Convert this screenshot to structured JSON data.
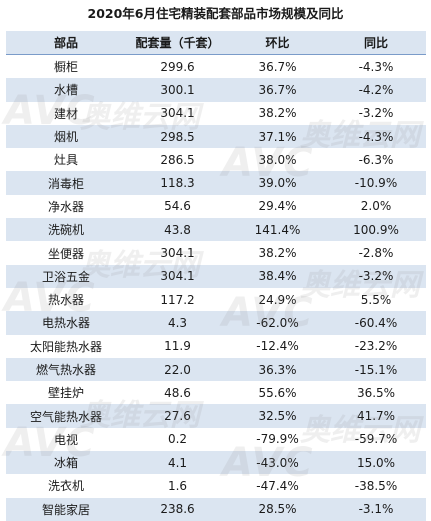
{
  "title": "2020年6月住宅精装配套部品市场规模及同比",
  "headers": [
    "部品",
    "配套量（千套）",
    "环比",
    "同比"
  ],
  "rows": [
    [
      "橱柜",
      "299.6",
      "36.7%",
      "-4.3%"
    ],
    [
      "水槽",
      "300.1",
      "36.7%",
      "-4.2%"
    ],
    [
      "建材",
      "304.1",
      "38.2%",
      "-3.2%"
    ],
    [
      "烟机",
      "298.5",
      "37.1%",
      "-4.3%"
    ],
    [
      "灶具",
      "286.5",
      "38.0%",
      "-6.3%"
    ],
    [
      "消毒柜",
      "118.3",
      "39.0%",
      "-10.9%"
    ],
    [
      "净水器",
      "54.6",
      "29.4%",
      "2.0%"
    ],
    [
      "洗碗机",
      "43.8",
      "141.4%",
      "100.9%"
    ],
    [
      "坐便器",
      "304.1",
      "38.2%",
      "-2.8%"
    ],
    [
      "卫浴五金",
      "304.1",
      "38.4%",
      "-3.2%"
    ],
    [
      "热水器",
      "117.2",
      "24.9%",
      "5.5%"
    ],
    [
      "电热水器",
      "4.3",
      "-62.0%",
      "-60.4%"
    ],
    [
      "太阳能热水器",
      "11.9",
      "-12.4%",
      "-23.2%"
    ],
    [
      "燃气热水器",
      "22.0",
      "36.3%",
      "-15.1%"
    ],
    [
      "壁挂炉",
      "48.6",
      "55.6%",
      "36.5%"
    ],
    [
      "空气能热水器",
      "27.6",
      "32.5%",
      "41.7%"
    ],
    [
      "电视",
      "0.2",
      "-79.9%",
      "-59.7%"
    ],
    [
      "冰箱",
      "4.1",
      "-43.0%",
      "15.0%"
    ],
    [
      "洗衣机",
      "1.6",
      "-47.4%",
      "-38.5%"
    ],
    [
      "智能家居",
      "238.6",
      "28.5%",
      "-3.1%"
    ]
  ],
  "watermark": {
    "brand": "AVC",
    "cn": "奥维云网"
  },
  "colors": {
    "stripe": "#dbe5f1",
    "header_border": "#7a9bc9"
  }
}
